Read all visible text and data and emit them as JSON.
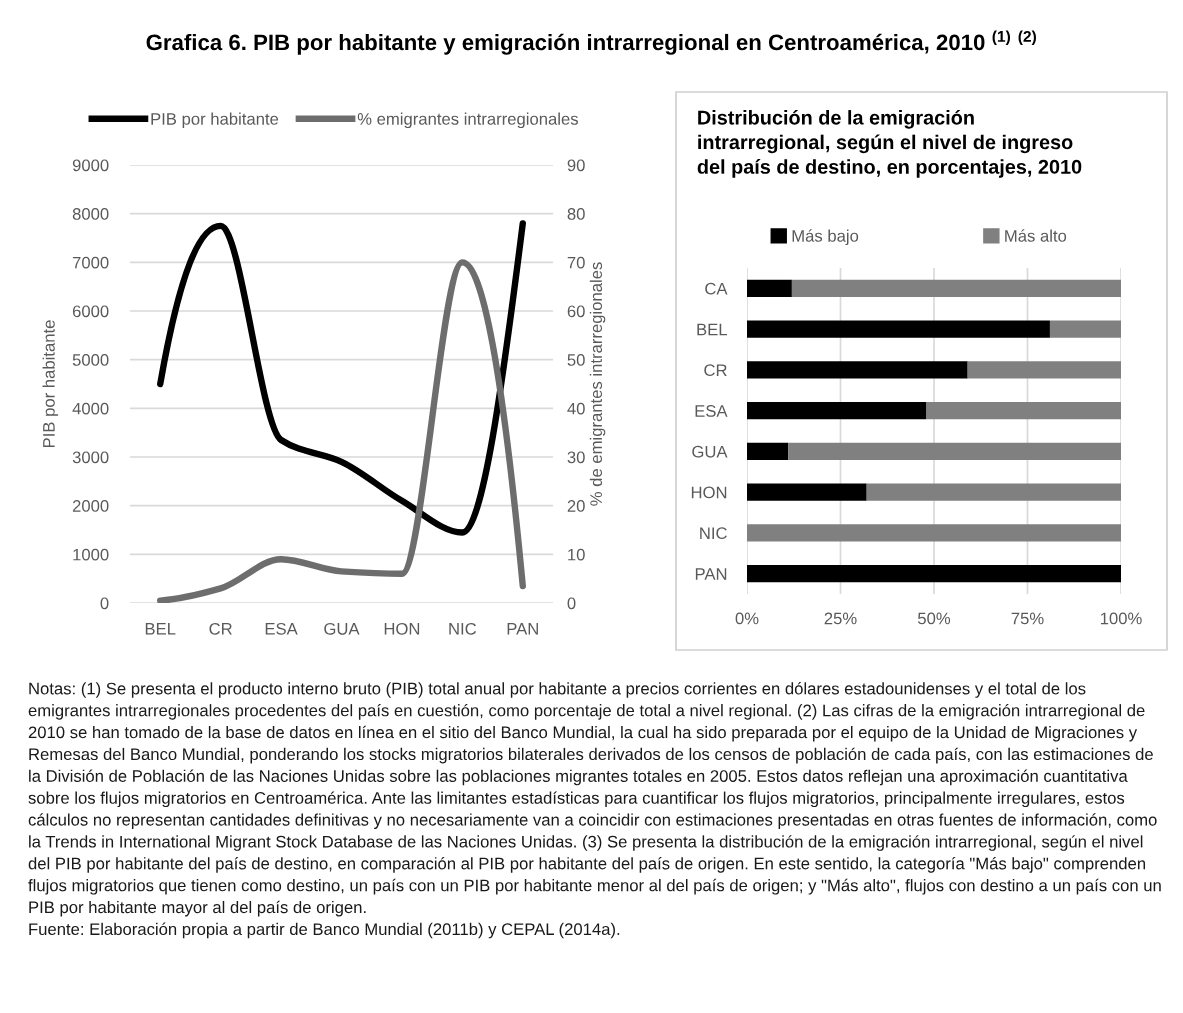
{
  "chart_data": [
    {
      "type": "other",
      "title": "Grafica 6. PIB por habitante y emigración intrarregional en Centroamérica, 2010 $^{(1)}$ $^{(2)}$"
    },
    {
      "type": "line",
      "categories": [
        "BEL",
        "CR",
        "ESA",
        "GUA",
        "HON",
        "NIC",
        "PAN"
      ],
      "series": [
        {
          "name": "PIB por habitante",
          "color": "#000000",
          "values": [
            4500,
            7750,
            3350,
            2900,
            2100,
            1450,
            7800
          ]
        },
        {
          "name": "% emigrantes intrarregionales",
          "color": "#6d6d6d",
          "axis": "y2",
          "values": [
            0.5,
            3,
            9,
            6.5,
            6,
            70,
            3.5
          ]
        }
      ],
      "ylabel": "PIB por habitante",
      "y2label": "% de emigrantes intrarregionales",
      "ylim": [
        0,
        9000
      ],
      "yticks": [
        0,
        1000,
        2000,
        3000,
        4000,
        5000,
        6000,
        7000,
        8000,
        9000
      ],
      "y2lim": [
        0,
        90
      ],
      "y2ticks": [
        0,
        10,
        20,
        30,
        40,
        50,
        60,
        70,
        80,
        90
      ],
      "grid": "y",
      "legend": "top",
      "marker": "none",
      "line_style": "solid"
    },
    {
      "type": "bar",
      "orientation": "horizontal",
      "stacked": true,
      "title": "Distribución de la emigración\nintrarregional, según el nivel de ingreso\ndel país de destino, en porcentajes, 2010",
      "categories": [
        "CA",
        "BEL",
        "CR",
        "ESA",
        "GUA",
        "HON",
        "NIC",
        "PAN"
      ],
      "series": [
        {
          "name": "Más bajo",
          "color": "#000000",
          "values": [
            12,
            81,
            59,
            48,
            11,
            32,
            0,
            100
          ]
        },
        {
          "name": "Más alto",
          "color": "#808080",
          "values": [
            88,
            19,
            41,
            52,
            89,
            68,
            100,
            0
          ]
        }
      ],
      "xlim": [
        0,
        100
      ],
      "xticks": [
        {
          "value": 0,
          "label": "0%"
        },
        {
          "value": 25,
          "label": "25%"
        },
        {
          "value": 50,
          "label": "50%"
        },
        {
          "value": 75,
          "label": "75%"
        },
        {
          "value": 100,
          "label": "100%"
        }
      ],
      "grid": "x",
      "legend": "top"
    },
    {
      "type": "other",
      "annotations": [
        "Notas: (1) Se presenta el producto interno bruto (PIB) total anual por habitante a precios corrientes en dólares estadounidenses y el total de los emigrantes intrarregionales procedentes del país en cuestión, como porcentaje de total a nivel regional. (2) Las cifras de la emigración intrarregional de 2010 se han tomado de la base de datos en línea en el sitio del Banco Mundial, la cual ha sido preparada por el equipo de la Unidad de Migraciones y Remesas del Banco Mundial, ponderando los stocks migratorios bilaterales derivados de los censos de población de cada país, con las estimaciones de la División de Población de las Naciones Unidas sobre las poblaciones migrantes totales en 2005. Estos datos reflejan una aproximación cuantitativa sobre los flujos migratorios en Centroamérica. Ante las limitantes estadísticas para cuantificar los flujos migratorios, principalmente irregulares, estos cálculos no representan cantidades definitivas y no necesariamente van a coincidir con estimaciones presentadas en otras fuentes de información, como la Trends in International Migrant Stock Database de las Naciones Unidas. (3) Se presenta la distribución de la emigración intrarregional, según el nivel del PIB por habitante del país de destino, en comparación al PIB por habitante del país de origen. En este sentido, la categoría \"Más bajo\" comprenden flujos migratorios que tienen como destino, un país con un PIB por habitante menor al del país de origen; y \"Más alto\", flujos con destino a un país con un PIB por habitante mayor al del país de origen.",
        "Fuente: Elaboración propia a partir de Banco Mundial (2011b) y CEPAL (2014a)."
      ]
    }
  ]
}
